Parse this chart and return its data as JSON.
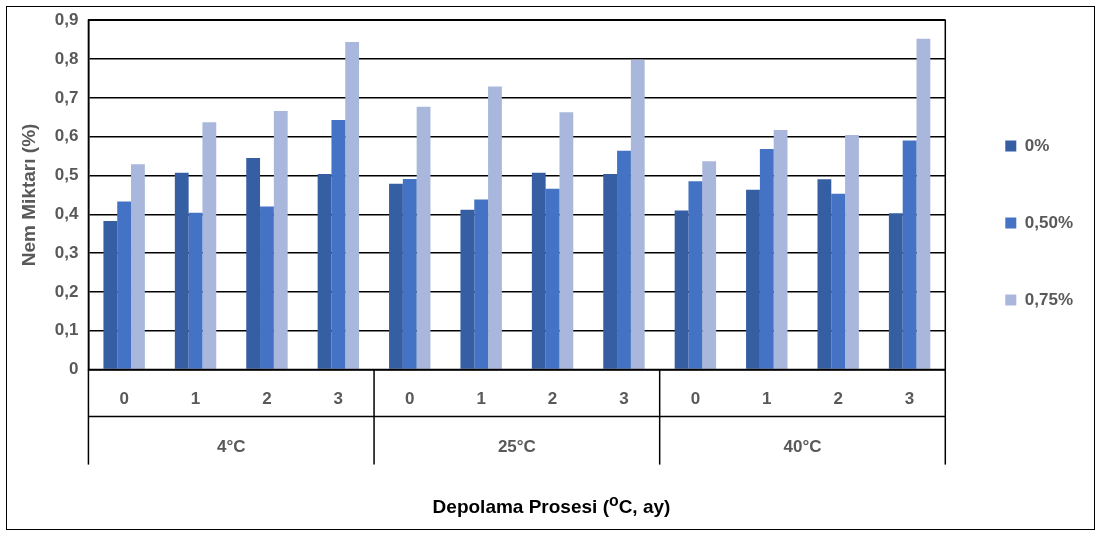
{
  "chart_data": {
    "type": "bar",
    "xlabel": "Depolama Prosesi ($^{o}$C, ay)",
    "ylabel": "Nem Miktarı (%)",
    "categories": [
      "0",
      "1",
      "2",
      "3",
      "0",
      "1",
      "2",
      "3",
      "0",
      "1",
      "2",
      "3"
    ],
    "annotations": [
      "4°C",
      "25°C",
      "40°C"
    ],
    "series": [
      {
        "name": "0%",
        "color": "#365fa3",
        "values": [
          0.383,
          0.507,
          0.545,
          0.504,
          0.479,
          0.412,
          0.507,
          0.504,
          0.41,
          0.463,
          0.49,
          0.403
        ]
      },
      {
        "name": "0,50%",
        "color": "#4472c4",
        "values": [
          0.433,
          0.404,
          0.42,
          0.643,
          0.491,
          0.438,
          0.466,
          0.564,
          0.485,
          0.568,
          0.453,
          0.59
        ]
      },
      {
        "name": "0,75%",
        "color": "#a9b7dc",
        "values": [
          0.529,
          0.637,
          0.666,
          0.844,
          0.677,
          0.729,
          0.663,
          0.798,
          0.537,
          0.617,
          0.604,
          0.852
        ]
      }
    ],
    "ylim": [
      0,
      0.9
    ],
    "yticks": [
      {
        "value": 0,
        "label": "0"
      },
      {
        "value": 0.1,
        "label": "0,1"
      },
      {
        "value": 0.2,
        "label": "0,2"
      },
      {
        "value": 0.3,
        "label": "0,3"
      },
      {
        "value": 0.4,
        "label": "0,4"
      },
      {
        "value": 0.5,
        "label": "0,5"
      },
      {
        "value": 0.6,
        "label": "0,6"
      },
      {
        "value": 0.7,
        "label": "0,7"
      },
      {
        "value": 0.8,
        "label": "0,8"
      },
      {
        "value": 0.9,
        "label": "0,9"
      }
    ],
    "grid": "y",
    "legend": "right"
  }
}
